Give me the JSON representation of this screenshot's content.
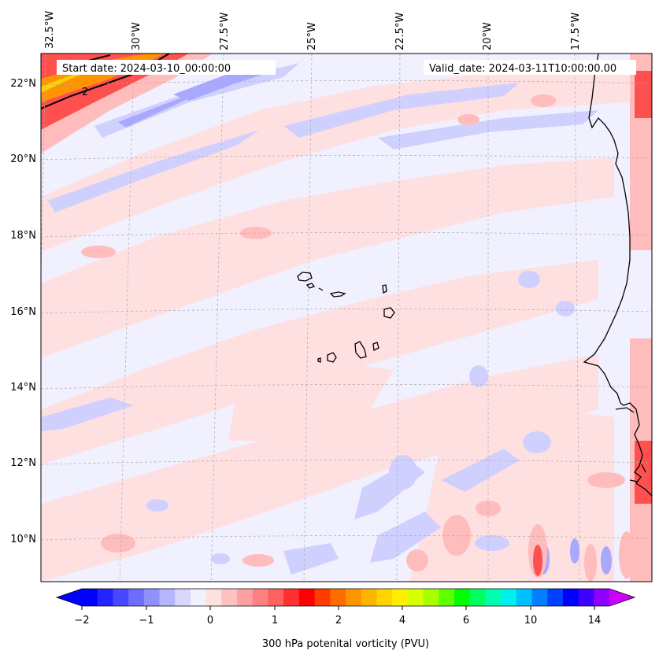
{
  "map": {
    "start_date": "Start date: 2024-03-10_00:00:00",
    "valid_date": "Valid_date: 2024-03-11T10:00:00.00",
    "lon_labels": [
      "32.5°W",
      "30°W",
      "27.5°W",
      "25°W",
      "22.5°W",
      "20°W",
      "17.5°W"
    ],
    "lat_labels": [
      "22°N",
      "20°N",
      "18°N",
      "16°N",
      "14°N",
      "12°N",
      "10°N"
    ],
    "contour_label": "2",
    "colors": {
      "background": "#f0f0ff",
      "light_pink": "#ffe0e0",
      "pink": "#ffbcbc",
      "light_blue": "#d0d0ff",
      "blue": "#a8a8ff",
      "red": "#ff5050",
      "orange": "#ff9400",
      "yellow": "#ffd000"
    }
  },
  "colorbar": {
    "label": "300 hPa potenital vorticity (PVU)",
    "tick_labels": [
      "−2",
      "−1",
      "0",
      "1",
      "2",
      "4",
      "6",
      "10",
      "14"
    ],
    "colors": [
      "#0000ff",
      "#2424ff",
      "#4848ff",
      "#6c6cff",
      "#9090ff",
      "#b4b4ff",
      "#d8d8ff",
      "#f0f0ff",
      "#ffe0e0",
      "#ffc0c0",
      "#ffa0a0",
      "#ff8080",
      "#ff6060",
      "#ff3030",
      "#ff0000",
      "#ff3c00",
      "#ff6c00",
      "#ff9400",
      "#ffb400",
      "#ffd400",
      "#fff000",
      "#d8ff00",
      "#a8ff00",
      "#60ff00",
      "#00ff00",
      "#00ff60",
      "#00ffb0",
      "#00f0f0",
      "#00c0ff",
      "#0080ff",
      "#0040ff",
      "#0000ff",
      "#4000ff",
      "#9000ff"
    ],
    "under_color": "#0000ff",
    "over_color": "#cc00ff"
  }
}
